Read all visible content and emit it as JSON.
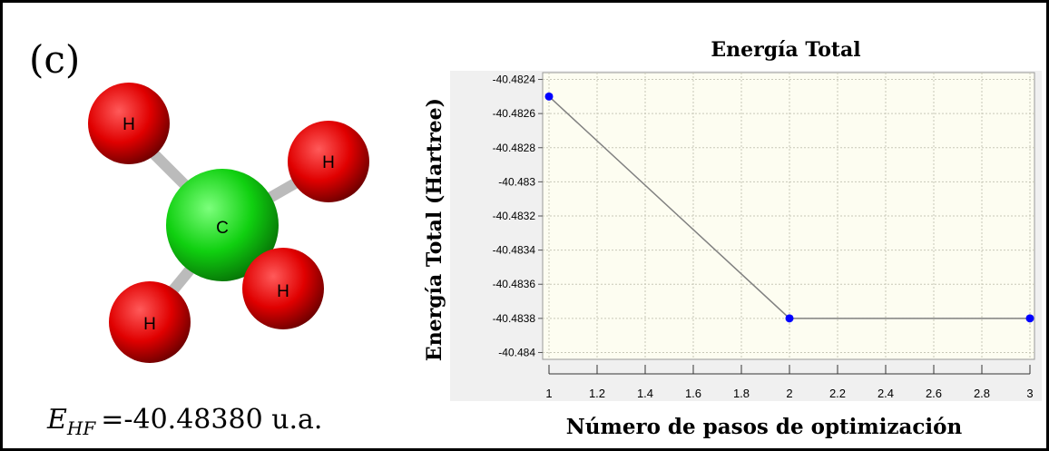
{
  "panel_label": "(c)",
  "molecule": {
    "atoms": [
      {
        "label": "H"
      },
      {
        "label": "H"
      },
      {
        "label": "C"
      },
      {
        "label": "H"
      },
      {
        "label": "H"
      }
    ]
  },
  "energy": {
    "symbol": "E",
    "subscript": "HF",
    "text": "=-40.48380 u.a."
  },
  "chart_data": {
    "type": "line",
    "title": "Energía Total",
    "x_label": "Número de pasos de optimización",
    "y_label": "Energía Total (Hartree)",
    "x": [
      1,
      2,
      3
    ],
    "series": [
      {
        "name": "Energía Total",
        "color": "#0000ff",
        "line_color": "#808080",
        "values": [
          -40.4825,
          -40.4838,
          -40.4838
        ]
      }
    ],
    "xlim": [
      1,
      3
    ],
    "xticks": [
      1,
      1.2,
      1.4,
      1.6,
      1.8,
      2,
      2.2,
      2.4,
      2.6,
      2.8,
      3
    ],
    "ylim": [
      -40.48404,
      -40.48236
    ],
    "yticks": [
      -40.4824,
      -40.4826,
      -40.4828,
      -40.483,
      -40.4832,
      -40.4834,
      -40.4836,
      -40.4838,
      -40.484
    ],
    "grid": true
  }
}
